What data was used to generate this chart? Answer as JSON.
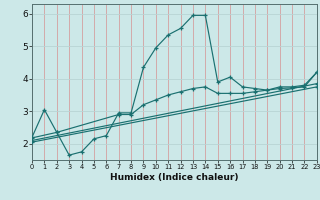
{
  "xlabel": "Humidex (Indice chaleur)",
  "xlim": [
    0,
    23
  ],
  "ylim": [
    1.5,
    6.3
  ],
  "yticks": [
    2,
    3,
    4,
    5,
    6
  ],
  "xtick_labels": [
    "0",
    "1",
    "2",
    "3",
    "4",
    "5",
    "6",
    "7",
    "8",
    "9",
    "10",
    "11",
    "12",
    "13",
    "14",
    "15",
    "16",
    "17",
    "18",
    "19",
    "20",
    "21",
    "22",
    "23"
  ],
  "bg_color": "#cce8e8",
  "grid_color_v": "#d4a0a0",
  "grid_color_h": "#b8d4d4",
  "line_color": "#1a7070",
  "lines": [
    {
      "x": [
        0,
        1,
        2,
        3,
        4,
        5,
        6,
        7,
        8,
        9,
        10,
        11,
        12,
        13,
        14,
        15,
        16,
        17,
        18,
        19,
        20,
        21,
        22,
        23
      ],
      "y": [
        2.2,
        3.05,
        2.35,
        1.65,
        1.75,
        2.15,
        2.25,
        2.95,
        2.95,
        4.35,
        4.95,
        5.35,
        5.55,
        5.95,
        5.95,
        3.9,
        4.05,
        3.75,
        3.7,
        3.65,
        3.75,
        3.75,
        3.8,
        4.2
      ]
    },
    {
      "x": [
        0,
        2,
        7,
        8,
        9,
        10,
        11,
        12,
        13,
        14,
        15,
        16,
        17,
        18,
        19,
        20,
        21,
        22,
        23
      ],
      "y": [
        2.18,
        2.35,
        2.9,
        2.9,
        3.2,
        3.35,
        3.5,
        3.6,
        3.7,
        3.75,
        3.55,
        3.55,
        3.55,
        3.6,
        3.65,
        3.7,
        3.72,
        3.75,
        4.2
      ]
    },
    {
      "x": [
        0,
        23
      ],
      "y": [
        2.1,
        3.85
      ]
    },
    {
      "x": [
        0,
        23
      ],
      "y": [
        2.05,
        3.75
      ]
    }
  ]
}
